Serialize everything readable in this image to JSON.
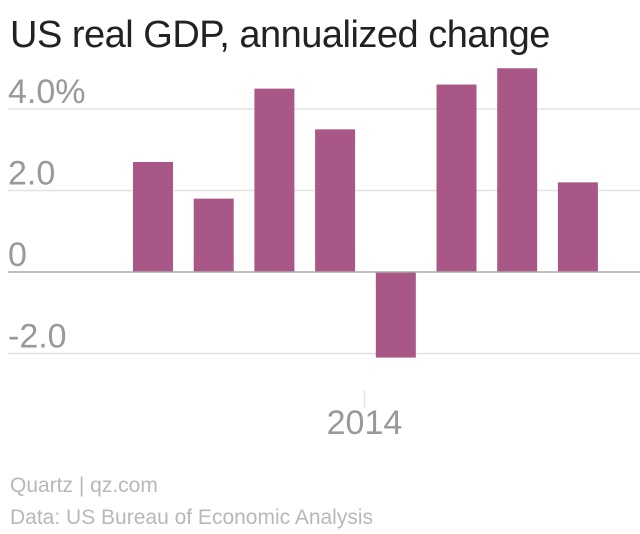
{
  "title": "US real GDP, annualized change",
  "footer": {
    "source": "Quartz | qz.com",
    "data_credit": "Data: US Bureau of Economic Analysis"
  },
  "colors": {
    "bar": "#a85786",
    "grid": "#e2e2e2",
    "zero_line": "#aaaaaa",
    "tick_text": "#999999",
    "footer_text": "#b8b8b8"
  },
  "chart_data": {
    "type": "bar",
    "title": "US real GDP, annualized change",
    "xlabel": "",
    "ylabel": "",
    "ylim": [
      -2.9,
      4.9
    ],
    "yticks": [
      {
        "value": 4.0,
        "label": "4.0%"
      },
      {
        "value": 2.0,
        "label": "2.0"
      },
      {
        "value": 0,
        "label": "0"
      },
      {
        "value": -2.0,
        "label": "-2.0"
      }
    ],
    "x_tick_labels": [
      "2014"
    ],
    "values": [
      2.7,
      1.8,
      4.5,
      3.5,
      -2.1,
      4.6,
      5.0,
      2.2
    ],
    "grid": true,
    "legend": "none"
  }
}
